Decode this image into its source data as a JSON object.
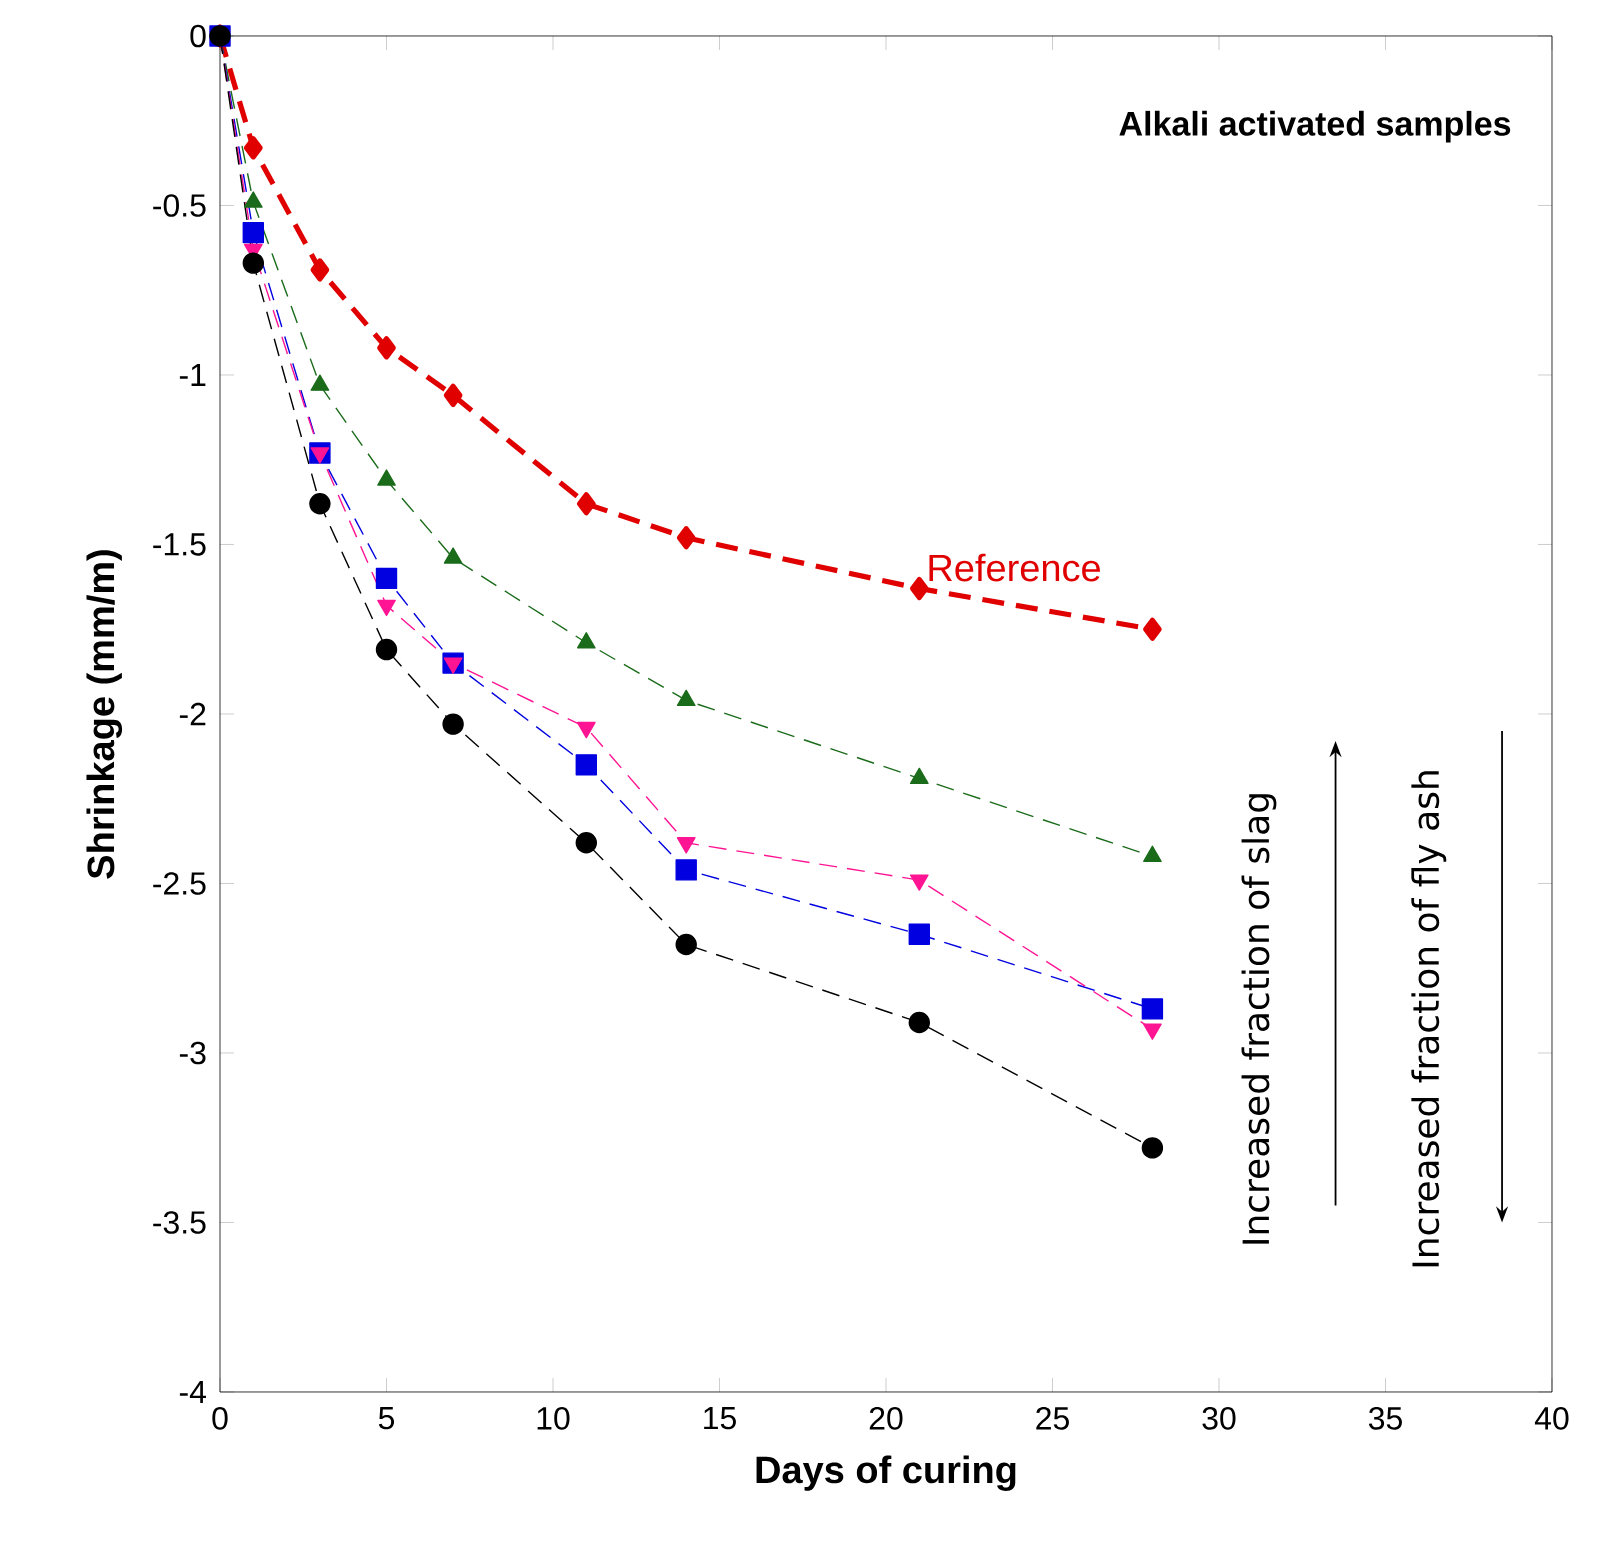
{
  "chart_data": {
    "type": "line",
    "xlabel": "Days of curing",
    "ylabel": "Shrinkage (mm/m)",
    "xlim": [
      0,
      40
    ],
    "ylim": [
      -4,
      0
    ],
    "xticks": [
      0,
      5,
      10,
      15,
      20,
      25,
      30,
      35,
      40
    ],
    "yticks": [
      -4,
      -3.5,
      -3,
      -2.5,
      -2,
      -1.5,
      -1,
      -0.5,
      0
    ],
    "x": [
      0,
      1,
      3,
      5,
      7,
      11,
      14,
      21,
      28
    ],
    "grid": false,
    "legend": false,
    "line_style": "dashed",
    "series": [
      {
        "name": "Reference",
        "color": "#e00000",
        "marker": "diamond",
        "values": [
          0,
          -0.33,
          -0.69,
          -0.92,
          -1.06,
          -1.38,
          -1.48,
          -1.63,
          -1.75
        ]
      },
      {
        "color": "#1a6b1a",
        "marker": "triangle",
        "values": [
          0,
          -0.49,
          -1.03,
          -1.31,
          -1.54,
          -1.79,
          -1.96,
          -2.19,
          -2.42
        ]
      },
      {
        "color": "#0000e0",
        "marker": "square",
        "values": [
          0,
          -0.58,
          -1.23,
          -1.6,
          -1.85,
          -2.15,
          -2.46,
          -2.65,
          -2.87
        ]
      },
      {
        "color": "#ff1493",
        "marker": "triangle-down",
        "values": [
          0,
          -0.63,
          -1.23,
          -1.68,
          -1.85,
          -2.04,
          -2.38,
          -2.49,
          -2.93
        ]
      },
      {
        "color": "#000000",
        "marker": "circle",
        "values": [
          0,
          -0.67,
          -1.38,
          -1.81,
          -2.03,
          -2.38,
          -2.68,
          -2.91,
          -3.28
        ]
      }
    ],
    "annotations": [
      "Alkali activated samples",
      "Increased fraction of slag",
      "Increased fraction of fly ash"
    ]
  }
}
